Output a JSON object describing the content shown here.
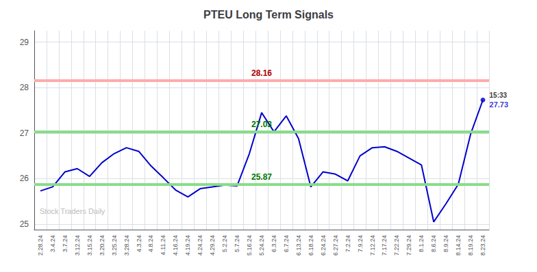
{
  "chart_data": {
    "type": "line",
    "title": "PTEU Long Term Signals",
    "categories": [
      "2.28.24",
      "3.4.24",
      "3.7.24",
      "3.12.24",
      "3.15.24",
      "3.20.24",
      "3.25.24",
      "3.28.24",
      "4.3.24",
      "4.8.24",
      "4.11.24",
      "4.16.24",
      "4.19.24",
      "4.24.24",
      "4.29.24",
      "5.2.24",
      "5.7.24",
      "5.16.24",
      "5.24.24",
      "6.3.24",
      "6.7.24",
      "6.13.24",
      "6.18.24",
      "6.24.24",
      "6.27.24",
      "7.2.24",
      "7.9.24",
      "7.12.24",
      "7.17.24",
      "7.22.24",
      "7.29.24",
      "8.1.24",
      "8.6.24",
      "8.9.24",
      "8.14.24",
      "8.19.24",
      "8.23.24"
    ],
    "values": [
      25.73,
      25.82,
      26.15,
      26.22,
      26.05,
      26.35,
      26.55,
      26.68,
      26.6,
      26.28,
      26.02,
      25.75,
      25.6,
      25.78,
      25.82,
      25.86,
      25.84,
      26.55,
      27.45,
      27.03,
      27.38,
      26.88,
      25.82,
      26.15,
      26.1,
      25.95,
      26.5,
      26.68,
      26.7,
      26.6,
      26.45,
      26.3,
      25.05,
      25.45,
      25.88,
      26.98,
      27.73
    ],
    "color": "#0000cc",
    "ylim": [
      24.88,
      29.25
    ],
    "yticks": [
      25,
      26,
      27,
      28,
      29
    ],
    "grid": true,
    "annotations": [
      {
        "type": "hline",
        "y": 28.16,
        "text": "28.16",
        "color": "#ffaaaa",
        "text_color": "#aa0000"
      },
      {
        "type": "hline",
        "y": 27.03,
        "text": "27.03",
        "color": "#88dd88",
        "text_color": "#007700"
      },
      {
        "type": "hline",
        "y": 25.87,
        "text": "25.87",
        "color": "#88dd88",
        "text_color": "#007700"
      }
    ],
    "last_point": {
      "category": "8.23.24",
      "value": 27.73,
      "time": "15:33",
      "label": "27.73",
      "color": "#0000cc",
      "time_color": "#000000"
    },
    "watermark": {
      "text": "Stock Traders Daily",
      "color": "#bbbbbb"
    }
  }
}
